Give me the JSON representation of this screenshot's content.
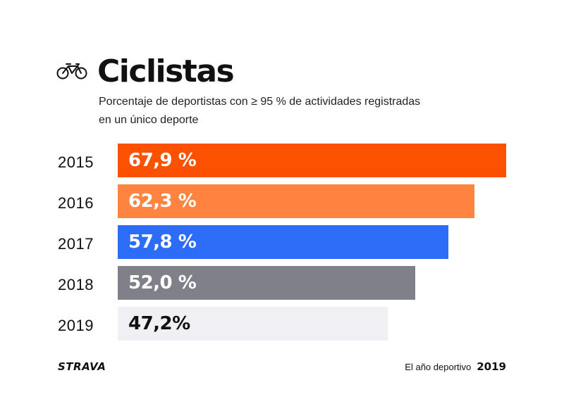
{
  "header": {
    "title": "Ciclistas",
    "subtitle": "Porcentaje de deportistas con ≥ 95 % de actividades registradas en un único deporte"
  },
  "icon": "bicycle-icon",
  "chart_data": {
    "type": "bar",
    "orientation": "horizontal",
    "title": "Ciclistas",
    "subtitle": "Porcentaje de deportistas con ≥ 95 % de actividades registradas en un único deporte",
    "categories": [
      "2015",
      "2016",
      "2017",
      "2018",
      "2019"
    ],
    "values": [
      67.9,
      62.3,
      57.8,
      52.0,
      47.2
    ],
    "labels": [
      "67,9 %",
      "62,3 %",
      "57,8 %",
      "52,0 %",
      "47,2%"
    ],
    "colors": [
      "#FC5200",
      "#FF8440",
      "#2D6CF6",
      "#808088",
      "#EFEFF4"
    ],
    "label_colors": [
      "#ffffff",
      "#ffffff",
      "#ffffff",
      "#ffffff",
      "#111111"
    ],
    "xlim": [
      0,
      67.9
    ],
    "grid": false,
    "legend": "none"
  },
  "footer": {
    "brand": "STRAVA",
    "caption": "El año deportivo",
    "year": "2019"
  }
}
